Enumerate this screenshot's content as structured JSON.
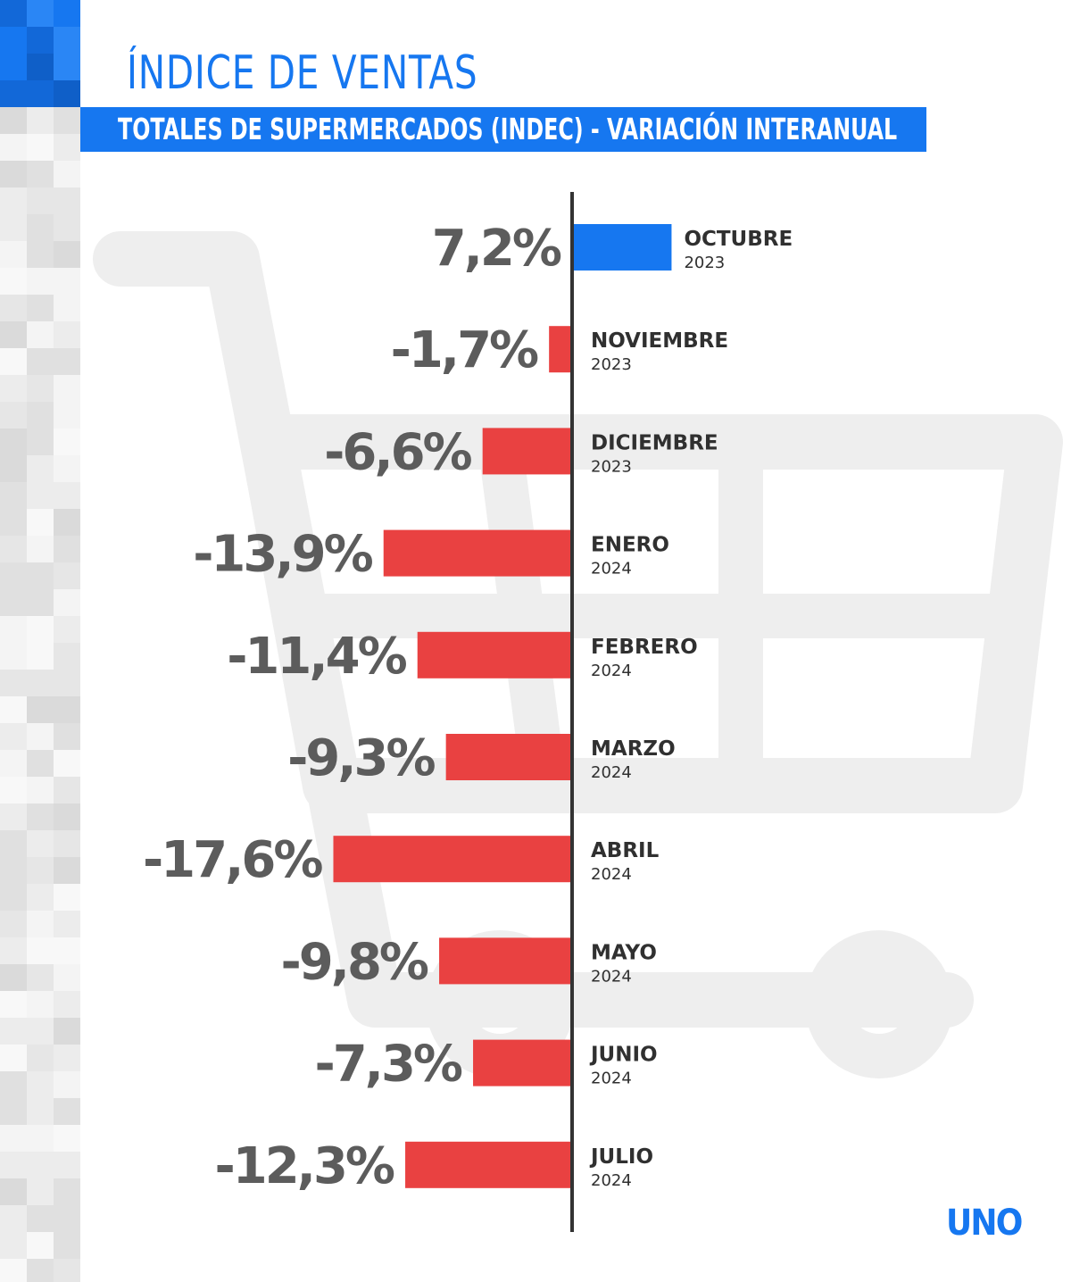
{
  "header": {
    "title": "ÍNDICE DE VENTAS",
    "subtitle": "TOTALES DE SUPERMERCADOS (INDEC) - VARIACIÓN INTERANUAL"
  },
  "logo": {
    "text": "UNO"
  },
  "colors": {
    "accent": "#1677f0",
    "positive_bar": "#1677f0",
    "negative_bar": "#e83b3b",
    "value_text": "#5c5c5c",
    "axis": "#333333"
  },
  "icons": [
    "shopping-cart-icon"
  ],
  "chart_data": {
    "type": "bar",
    "orientation": "horizontal",
    "title": "ÍNDICE DE VENTAS",
    "subtitle": "TOTALES DE SUPERMERCADOS (INDEC) - VARIACIÓN INTERANUAL",
    "unit": "%",
    "categories": [
      {
        "month": "OCTUBRE",
        "year": "2023"
      },
      {
        "month": "NOVIEMBRE",
        "year": "2023"
      },
      {
        "month": "DICIEMBRE",
        "year": "2023"
      },
      {
        "month": "ENERO",
        "year": "2024"
      },
      {
        "month": "FEBRERO",
        "year": "2024"
      },
      {
        "month": "MARZO",
        "year": "2024"
      },
      {
        "month": "ABRIL",
        "year": "2024"
      },
      {
        "month": "MAYO",
        "year": "2024"
      },
      {
        "month": "JUNIO",
        "year": "2024"
      },
      {
        "month": "JULIO",
        "year": "2024"
      }
    ],
    "values": [
      7.2,
      -1.7,
      -6.6,
      -13.9,
      -11.4,
      -9.3,
      -17.6,
      -9.8,
      -7.3,
      -12.3
    ],
    "value_labels": [
      "7,2%",
      "-1,7%",
      "-6,6%",
      "-13,9%",
      "-11,4%",
      "-9,3%",
      "-17,6%",
      "-9,8%",
      "-7,3%",
      "-12,3%"
    ],
    "grid": false,
    "legend": "none"
  }
}
